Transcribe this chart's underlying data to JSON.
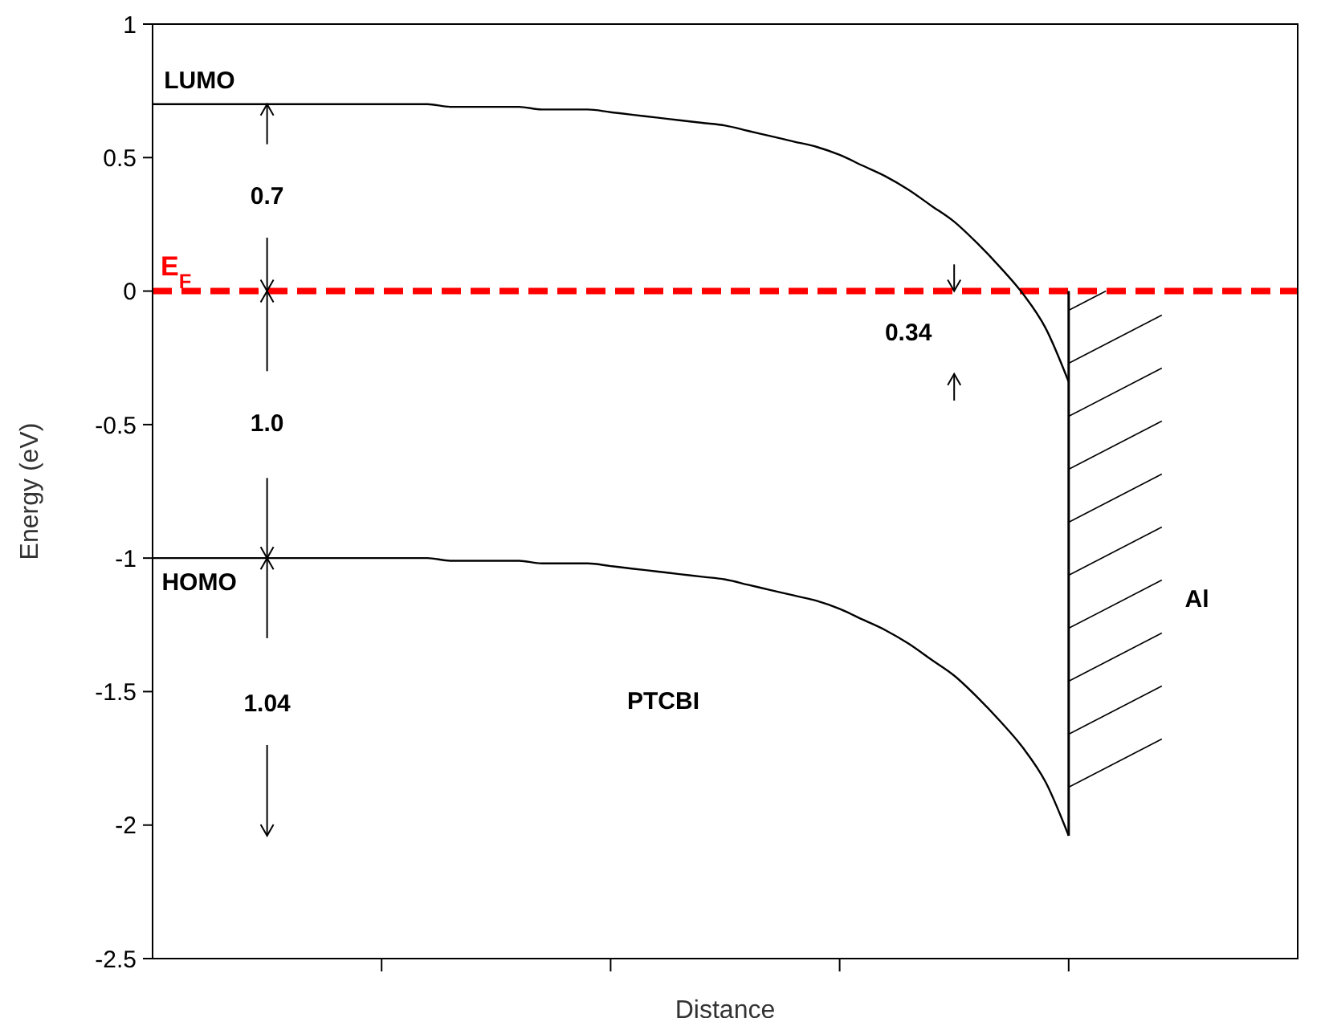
{
  "chart_data": {
    "type": "line",
    "xlabel": "Distance",
    "ylabel": "Energy (eV)",
    "categories": [
      null,
      null,
      null,
      null,
      null,
      null,
      null,
      null,
      null,
      null,
      null,
      null,
      null,
      null,
      null,
      null,
      null,
      null,
      null,
      null,
      null,
      null,
      null,
      null,
      null,
      null,
      null,
      null,
      null,
      null,
      null,
      null,
      null,
      null,
      null,
      null,
      null,
      null,
      null,
      null,
      null,
      null,
      null,
      null,
      null,
      null,
      null,
      null,
      null,
      null,
      null
    ],
    "series": [
      {
        "name": "LUMO",
        "color": "#000000",
        "values": [
          0.7,
          0.7,
          0.7,
          0.7,
          0.7,
          0.7,
          0.7,
          0.7,
          0.7,
          0.7,
          0.7,
          0.7,
          0.7,
          0.69,
          0.69,
          0.69,
          0.69,
          0.68,
          0.68,
          0.68,
          0.67,
          0.66,
          0.65,
          0.64,
          0.63,
          0.62,
          0.6,
          0.58,
          0.56,
          0.54,
          0.51,
          0.47,
          0.43,
          0.38,
          0.32,
          0.26,
          0.18,
          0.09,
          -0.01,
          -0.14,
          -0.34,
          null,
          null,
          null,
          null,
          null,
          null,
          null,
          null,
          null,
          null
        ]
      },
      {
        "name": "HOMO",
        "color": "#000000",
        "values": [
          -1.0,
          -1.0,
          -1.0,
          -1.0,
          -1.0,
          -1.0,
          -1.0,
          -1.0,
          -1.0,
          -1.0,
          -1.0,
          -1.0,
          -1.0,
          -1.01,
          -1.01,
          -1.01,
          -1.01,
          -1.02,
          -1.02,
          -1.02,
          -1.03,
          -1.04,
          -1.05,
          -1.06,
          -1.07,
          -1.08,
          -1.1,
          -1.12,
          -1.14,
          -1.16,
          -1.19,
          -1.23,
          -1.27,
          -1.32,
          -1.38,
          -1.44,
          -1.52,
          -1.61,
          -1.71,
          -1.84,
          -2.04,
          null,
          null,
          null,
          null,
          null,
          null,
          null,
          null,
          null,
          null
        ]
      }
    ],
    "ylim": [
      -2.5,
      1
    ],
    "yticks": [
      -2.5,
      -2,
      -1.5,
      -1,
      -0.5,
      0,
      0.5,
      1
    ],
    "ref_lines": [
      {
        "axis": "y",
        "value": 0,
        "label": "E$_{F}$",
        "color": "#ff0000",
        "line_style": "dashed"
      }
    ],
    "annotations": [
      "0.7",
      "1.0",
      "1.04",
      "0.34",
      "PTCBI",
      "Al"
    ],
    "grid": false,
    "legend": false,
    "marker": "none",
    "line_style": "solid"
  }
}
